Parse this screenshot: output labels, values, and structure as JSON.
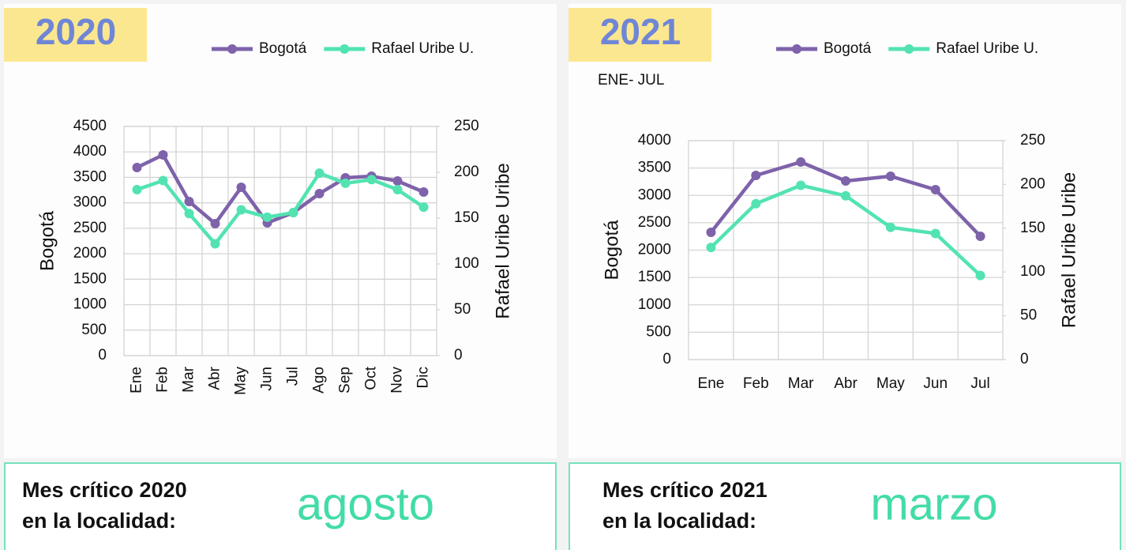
{
  "chart_data": [
    {
      "type": "line",
      "title": "2020",
      "categories": [
        "Ene",
        "Feb",
        "Mar",
        "Abr",
        "May",
        "Jun",
        "Jul",
        "Ago",
        "Sep",
        "Oct",
        "Nov",
        "Dic"
      ],
      "series": [
        {
          "name": "Bogotá",
          "color": "#7e62aa",
          "values": [
            3693,
            3941,
            3026,
            2591,
            3305,
            2607,
            2809,
            3181,
            3491,
            3522,
            3429,
            3212
          ]
        },
        {
          "name": "Rafael Uribe U.",
          "color": "#52e3b1",
          "axis": "y2",
          "values": [
            181,
            191,
            155,
            122,
            159,
            151,
            156,
            199,
            188,
            192,
            181,
            162
          ]
        }
      ],
      "ylabel": "Bogotá",
      "y2label": "Rafael Uribe Uribe",
      "ylim": [
        0,
        4500
      ],
      "yticks": [
        0,
        500,
        1000,
        1500,
        2000,
        2500,
        3000,
        3500,
        4000,
        4500
      ],
      "y2lim": [
        0,
        250
      ],
      "y2ticks": [
        0,
        50,
        100,
        150,
        200,
        250
      ],
      "grid": true,
      "legend": "top"
    },
    {
      "type": "line",
      "title": "2021",
      "subtitle": "ENE- JUL",
      "categories": [
        "Ene",
        "Feb",
        "Mar",
        "Abr",
        "May",
        "Jun",
        "Jul"
      ],
      "series": [
        {
          "name": "Bogotá",
          "color": "#7e62aa",
          "values": [
            2325,
            3365,
            3610,
            3264,
            3350,
            3105,
            2253
          ]
        },
        {
          "name": "Rafael Uribe U.",
          "color": "#52e3b1",
          "axis": "y2",
          "values": [
            128,
            178,
            199,
            187,
            151,
            144,
            96
          ]
        }
      ],
      "ylabel": "Bogotá",
      "y2label": "Rafael Uribe Uribe",
      "ylim": [
        0,
        4000
      ],
      "yticks": [
        0,
        500,
        1000,
        1500,
        2000,
        2500,
        3000,
        3500,
        4000
      ],
      "y2lim": [
        0,
        250
      ],
      "y2ticks": [
        0,
        50,
        100,
        150,
        200,
        250
      ],
      "grid": true,
      "legend": "top"
    }
  ],
  "critical": [
    {
      "line1": "Mes crítico 2020",
      "line2": "en la localidad:",
      "month": "agosto"
    },
    {
      "line1": "Mes crítico 2021",
      "line2": "en la localidad:",
      "month": "marzo"
    }
  ]
}
